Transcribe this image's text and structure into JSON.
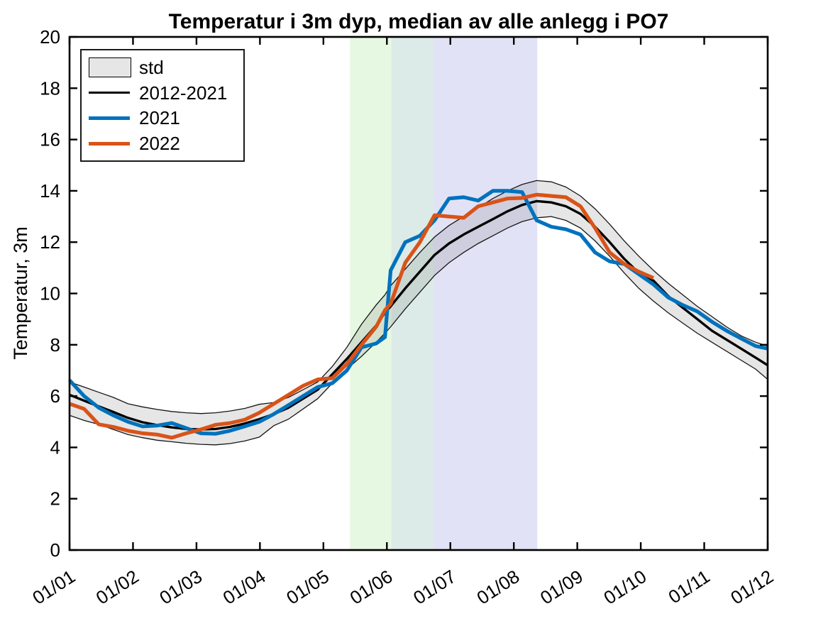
{
  "figure": {
    "title": "Temperatur i 3m dyp, median av alle anlegg i PO7",
    "ylabel": "Temperatur, 3m"
  },
  "legend": {
    "position": "top-left",
    "items": [
      {
        "label": "std",
        "type": "patch",
        "fill": "#e6e6e6",
        "edge": "#000000"
      },
      {
        "label": "2012-2021",
        "type": "line",
        "color": "#000000",
        "thickness": 3
      },
      {
        "label": "2021",
        "type": "line",
        "color": "#0072BD",
        "thickness": 5
      },
      {
        "label": "2022",
        "type": "line",
        "color": "#D95319",
        "thickness": 5
      }
    ]
  },
  "chart_data": {
    "type": "line",
    "title": "Temperatur i 3m dyp, median av alle anlegg i PO7",
    "xlabel": "",
    "ylabel": "Temperatur, 3m",
    "x_unit": "months since 1 Jan (0 = 01/01, 11 = 01/12)",
    "xlim": [
      0,
      11
    ],
    "ylim": [
      0,
      20
    ],
    "grid": false,
    "y_ticks": [
      0,
      2,
      4,
      6,
      8,
      10,
      12,
      14,
      16,
      18,
      20
    ],
    "x_ticks": [
      0,
      1,
      2,
      3,
      4,
      5,
      6,
      7,
      8,
      9,
      10,
      11
    ],
    "x_tick_labels": [
      "01/01",
      "01/02",
      "01/03",
      "01/04",
      "01/05",
      "01/06",
      "01/07",
      "01/08",
      "01/09",
      "01/10",
      "01/11",
      "01/12"
    ],
    "x": [
      0,
      0.23,
      0.46,
      0.69,
      0.92,
      1.15,
      1.38,
      1.61,
      1.84,
      2.07,
      2.3,
      2.53,
      2.76,
      2.99,
      3.22,
      3.45,
      3.68,
      3.91,
      4.14,
      4.37,
      4.6,
      4.83,
      4.97,
      5.06,
      5.29,
      5.52,
      5.75,
      5.98,
      6.21,
      6.44,
      6.67,
      6.9,
      7.13,
      7.36,
      7.59,
      7.82,
      8.05,
      8.28,
      8.51,
      8.74,
      8.97,
      9.2,
      9.43,
      9.66,
      9.89,
      10.12,
      10.35,
      10.58,
      10.81,
      11
    ],
    "std_band": {
      "name": "std",
      "fill": "#808080",
      "fill_opacity": 0.2,
      "edge_color": "#161616",
      "upper": [
        6.55,
        6.35,
        6.15,
        5.95,
        5.7,
        5.58,
        5.48,
        5.4,
        5.35,
        5.32,
        5.35,
        5.42,
        5.52,
        5.68,
        5.75,
        5.95,
        6.25,
        6.55,
        7.15,
        7.9,
        8.8,
        9.55,
        9.95,
        10.3,
        10.95,
        11.6,
        12.2,
        12.65,
        13,
        13.35,
        13.7,
        14,
        14.25,
        14.4,
        14.35,
        14.15,
        13.8,
        13.3,
        12.7,
        12.05,
        11.45,
        10.9,
        10.4,
        9.95,
        9.5,
        9.1,
        8.7,
        8.35,
        8.1,
        7.95
      ],
      "lower": [
        5.25,
        5.05,
        4.9,
        4.7,
        4.5,
        4.38,
        4.28,
        4.22,
        4.16,
        4.12,
        4.1,
        4.15,
        4.25,
        4.4,
        4.85,
        5.1,
        5.5,
        5.9,
        6.5,
        7.05,
        7.55,
        8.1,
        8.45,
        8.7,
        9.4,
        10.05,
        10.7,
        11.2,
        11.6,
        11.95,
        12.25,
        12.55,
        12.8,
        12.95,
        13,
        12.85,
        12.55,
        12.05,
        11.45,
        10.8,
        10.2,
        9.7,
        9.25,
        8.85,
        8.45,
        8.1,
        7.75,
        7.4,
        7.05,
        6.65
      ]
    },
    "series": [
      {
        "name": "2012-2021",
        "color": "#000000",
        "width": 3.4,
        "values": [
          6.05,
          5.82,
          5.6,
          5.38,
          5.15,
          4.98,
          4.87,
          4.78,
          4.72,
          4.7,
          4.72,
          4.8,
          4.93,
          5.1,
          5.3,
          5.55,
          5.9,
          6.25,
          6.85,
          7.45,
          8.1,
          8.75,
          9.25,
          9.5,
          10.2,
          10.85,
          11.5,
          11.95,
          12.3,
          12.6,
          12.9,
          13.2,
          13.45,
          13.6,
          13.55,
          13.4,
          13.1,
          12.6,
          12,
          11.35,
          10.8,
          10.5,
          9.9,
          9.45,
          9,
          8.55,
          8.2,
          7.85,
          7.5,
          7.2
        ]
      },
      {
        "name": "2021",
        "color": "#0072BD",
        "width": 5.2,
        "values": [
          6.62,
          6,
          5.55,
          5.25,
          5,
          4.82,
          4.85,
          4.95,
          4.75,
          4.55,
          4.53,
          4.65,
          4.82,
          5,
          5.3,
          5.65,
          6,
          6.35,
          6.5,
          7,
          7.9,
          8.05,
          8.3,
          10.9,
          12,
          12.25,
          12.85,
          13.7,
          13.75,
          13.62,
          14,
          14,
          13.95,
          12.85,
          12.6,
          12.5,
          12.3,
          11.6,
          11.25,
          11.15,
          10.75,
          10.35,
          9.85,
          9.55,
          9.3,
          8.9,
          8.55,
          8.25,
          7.95,
          7.85
        ]
      },
      {
        "name": "2022",
        "color": "#D95319",
        "width": 5.2,
        "values": [
          5.7,
          5.5,
          4.9,
          4.8,
          4.65,
          4.55,
          4.5,
          4.38,
          4.55,
          4.7,
          4.88,
          4.95,
          5.08,
          5.35,
          5.7,
          6.05,
          6.4,
          6.65,
          6.7,
          7.25,
          8,
          8.7,
          9.35,
          9.6,
          11.2,
          12,
          13.05,
          13,
          12.95,
          13.4,
          13.55,
          13.7,
          13.72,
          13.85,
          13.8,
          13.75,
          13.4,
          12.55,
          11.6,
          11.15,
          10.85,
          10.6
        ]
      }
    ],
    "shaded_periods": [
      {
        "name": "period-green",
        "from": 4.42,
        "to": 5.07,
        "color": "#e6f8e1"
      },
      {
        "name": "period-teal",
        "from": 5.07,
        "to": 5.73,
        "color": "#dcebe7"
      },
      {
        "name": "period-lavender",
        "from": 5.73,
        "to": 7.37,
        "color": "#e2e2f6"
      }
    ],
    "legend_entries": [
      "std",
      "2012-2021",
      "2021",
      "2022"
    ]
  }
}
